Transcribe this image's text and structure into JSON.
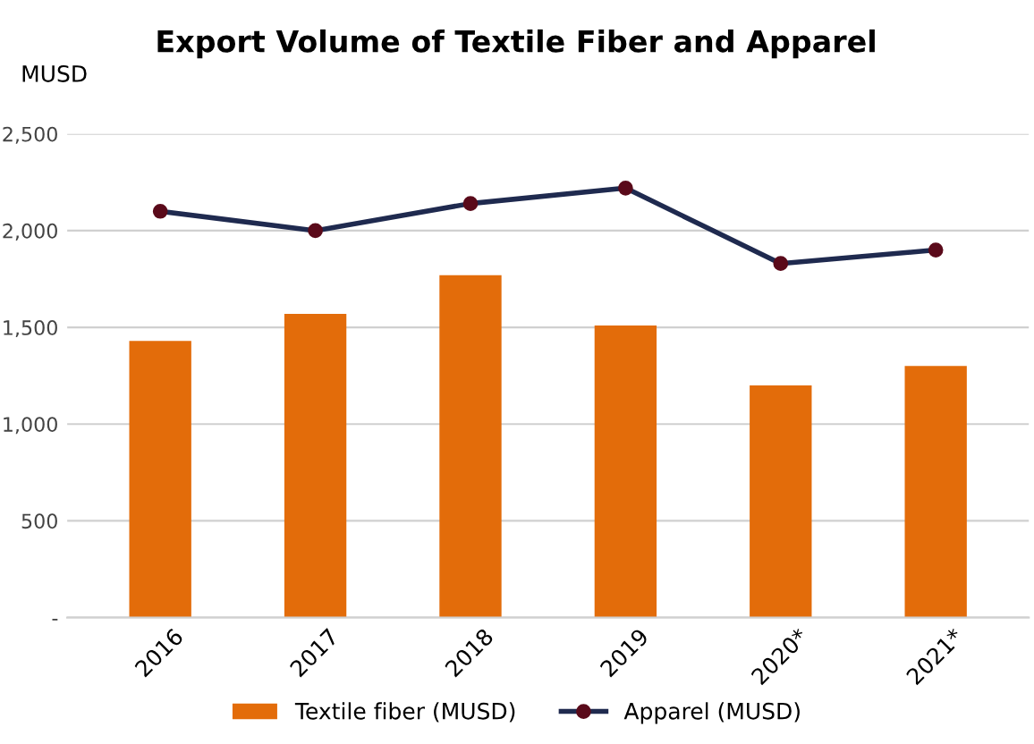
{
  "chart_data": {
    "type": "bar",
    "title": "Export Volume of Textile Fiber and Apparel",
    "ylabel": "MUSD",
    "categories": [
      "2016",
      "2017",
      "2018",
      "2019",
      "2020*",
      "2021*"
    ],
    "series": [
      {
        "name": "Textile fiber (MUSD)",
        "color": "#e36c0a",
        "values": [
          1430,
          1570,
          1770,
          1510,
          1200,
          1300
        ]
      },
      {
        "name": "Apparel (MUSD)",
        "type": "line",
        "color": "#1f2a4f",
        "marker": "circle",
        "values": [
          2100,
          2000,
          2140,
          2220,
          1830,
          1900
        ]
      }
    ],
    "ylim": [
      0,
      2500
    ],
    "yticks": [
      {
        "value": 0,
        "label": "-"
      },
      {
        "value": 500,
        "label": "500"
      },
      {
        "value": 1000,
        "label": "1,000"
      },
      {
        "value": 1500,
        "label": "1,500"
      },
      {
        "value": 2000,
        "label": "2,000"
      },
      {
        "value": 2500,
        "label": "2,500"
      }
    ],
    "grid": "y",
    "legend": "bottom"
  }
}
